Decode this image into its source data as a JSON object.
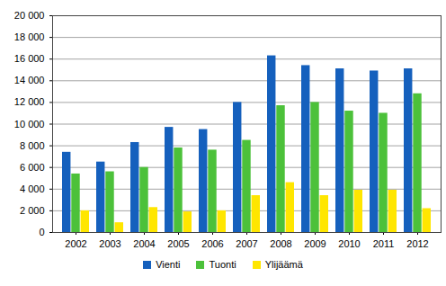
{
  "chart_data": {
    "type": "bar",
    "categories": [
      "2002",
      "2003",
      "2004",
      "2005",
      "2006",
      "2007",
      "2008",
      "2009",
      "2010",
      "2011",
      "2012"
    ],
    "series": [
      {
        "name": "Vienti",
        "color": "#1560bd",
        "values": [
          7400,
          6500,
          8300,
          9700,
          9500,
          12000,
          16300,
          15400,
          15100,
          14900,
          15100
        ]
      },
      {
        "name": "Tuonti",
        "color": "#4cc13a",
        "values": [
          5400,
          5600,
          6000,
          7800,
          7600,
          8500,
          11700,
          12000,
          11200,
          11000,
          12800
        ]
      },
      {
        "name": "Ylijäämä",
        "color": "#ffe600",
        "values": [
          2000,
          900,
          2300,
          1900,
          2000,
          3400,
          4600,
          3400,
          3900,
          3900,
          2200
        ]
      }
    ],
    "ylim": [
      0,
      20000
    ],
    "yticks": [
      0,
      {
        "value": 2000,
        "label": "2 000"
      },
      {
        "value": 4000,
        "label": "4 000"
      },
      {
        "value": 6000,
        "label": "6 000"
      },
      {
        "value": 8000,
        "label": "8 000"
      },
      {
        "value": 10000,
        "label": "10 000"
      },
      {
        "value": 12000,
        "label": "12 000"
      },
      {
        "value": 14000,
        "label": "14 000"
      },
      {
        "value": 16000,
        "label": "16 000"
      },
      {
        "value": 18000,
        "label": "18 000"
      },
      {
        "value": 20000,
        "label": "20 000"
      }
    ],
    "grid": true,
    "legend": "bottom"
  }
}
